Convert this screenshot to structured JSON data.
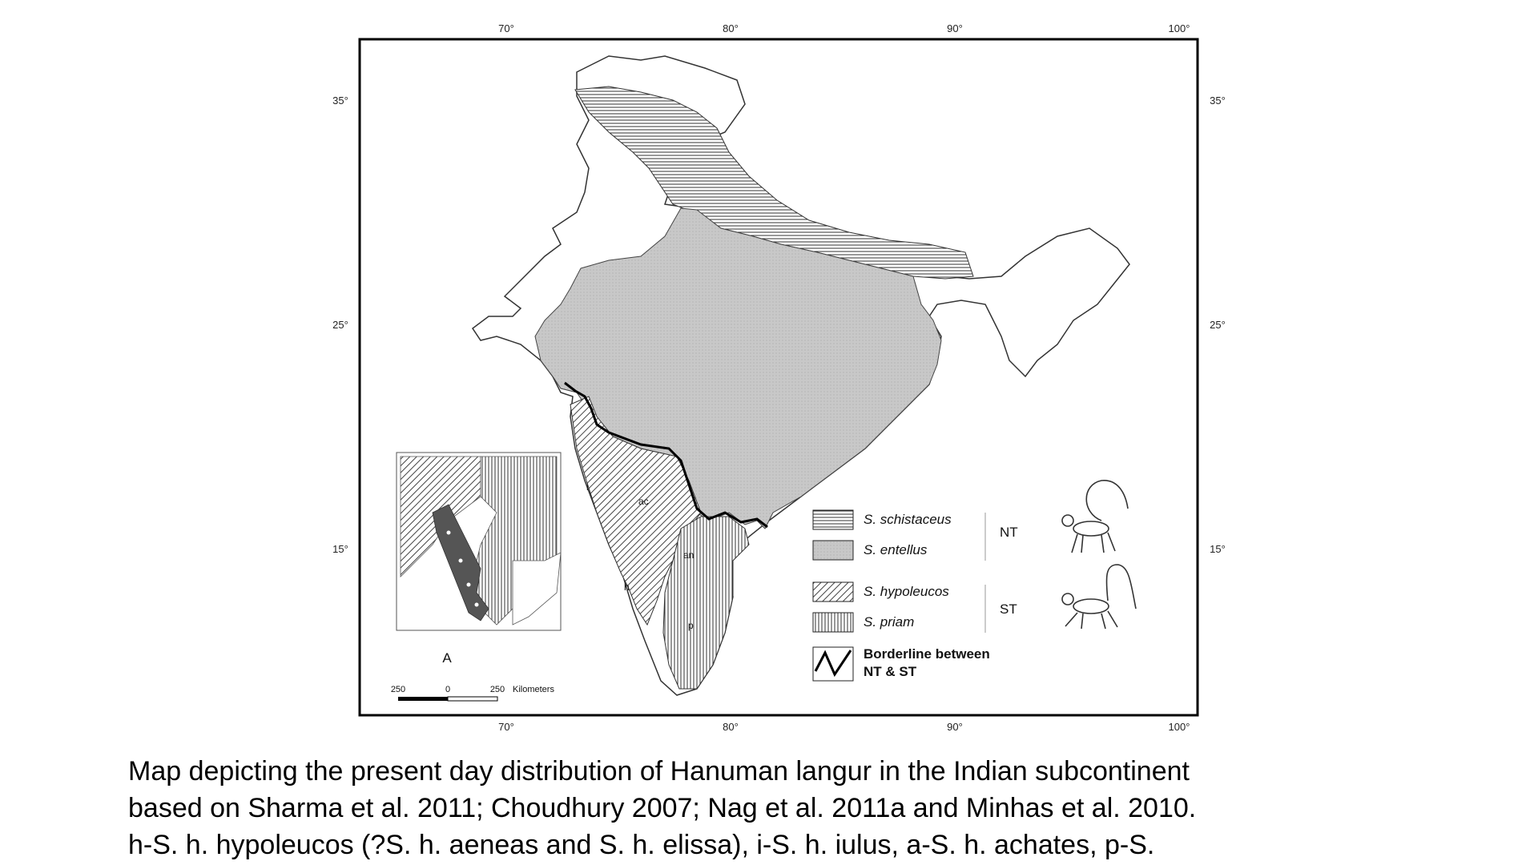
{
  "map": {
    "top_longitude_ticks": [
      "70°",
      "80°",
      "90°",
      "100°"
    ],
    "bottom_longitude_ticks": [
      "70°",
      "80°",
      "90°",
      "100°"
    ],
    "left_latitude_ticks": [
      "35°",
      "25°",
      "15°"
    ],
    "right_latitude_ticks": [
      "35°",
      "25°",
      "15°"
    ],
    "region_labels": {
      "i": "i",
      "ac": "ac",
      "h": "h",
      "an": "an",
      "p": "p"
    },
    "legend": {
      "items": [
        {
          "name": "S. schistaceus",
          "pattern": "horizontal-hatch"
        },
        {
          "name": "S. entellus",
          "pattern": "grey-fill"
        },
        {
          "name": "S. hypoleucos",
          "pattern": "diagonal-hatch"
        },
        {
          "name": "S. priam",
          "pattern": "vertical-hatch"
        }
      ],
      "group_nt": "NT",
      "group_st": "ST",
      "border_line_1": "Borderline between",
      "border_line_2": "NT & ST"
    },
    "inset": {
      "north_arrow_label": "A",
      "scale_labels": [
        "250",
        "0",
        "250",
        "Kilometers"
      ]
    }
  },
  "caption": {
    "line1": "Map depicting the present day distribution of Hanuman langur in the Indian subcontinent",
    "line2": "based on Sharma et al. 2011; Choudhury 2007; Nag et al. 2011a and Minhas et al. 2010.",
    "line3": "h-S. h. hypoleucos (?S. h. aeneas and S. h. elissa), i-S. h. iulus, a-S. h. achates, p-S."
  }
}
